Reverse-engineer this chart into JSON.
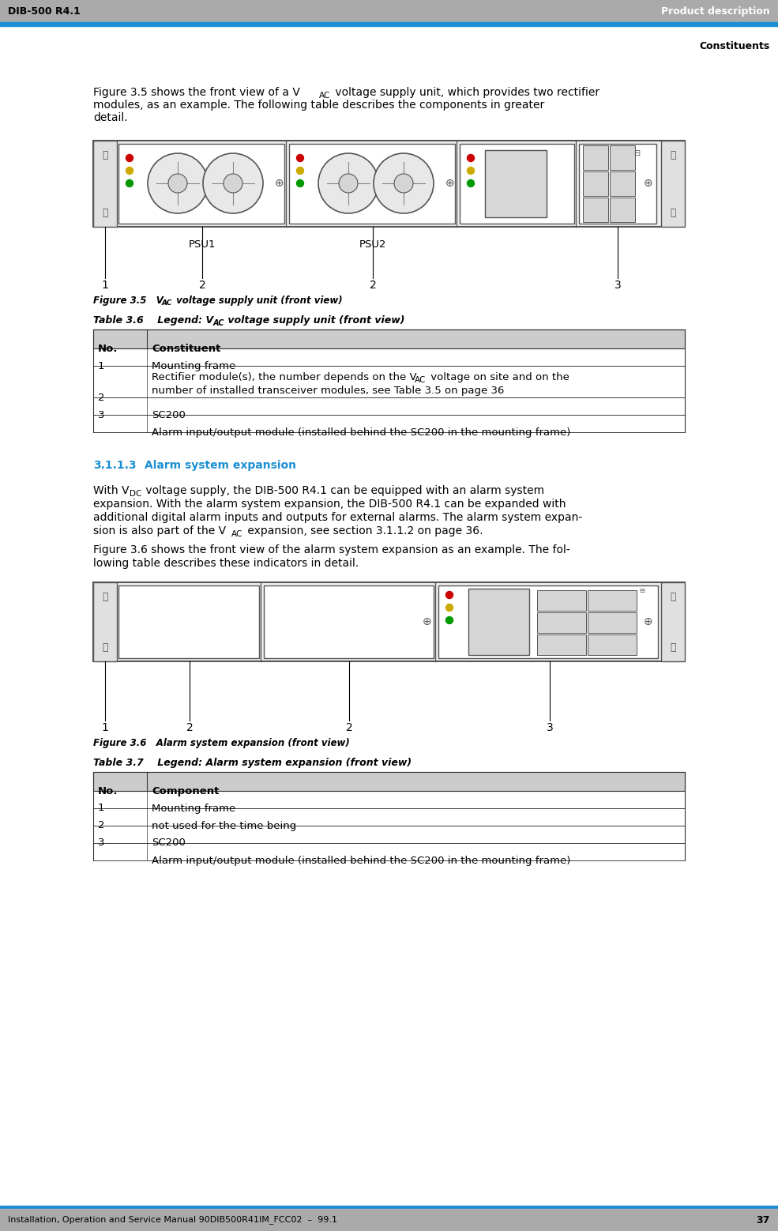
{
  "header_bg": "#AAAAAA",
  "header_blue_bar": "#1B8FD4",
  "header_left_text": "DIB-500 R4.1",
  "header_right_text": "Product description",
  "subheader_right_text": "Constituents",
  "footer_bg": "#AAAAAA",
  "footer_blue_bar": "#1B8FD4",
  "footer_left_text": "Installation, Operation and Service Manual 90DIB500R41IM_FCC02  –  99.1",
  "footer_right_text": "37",
  "page_bg": "#FFFFFF",
  "table_header_bg": "#CCCCCC",
  "section_color": "#1B8FD4",
  "section_num": "3.1.1.3",
  "section_title": "Alarm system expansion"
}
